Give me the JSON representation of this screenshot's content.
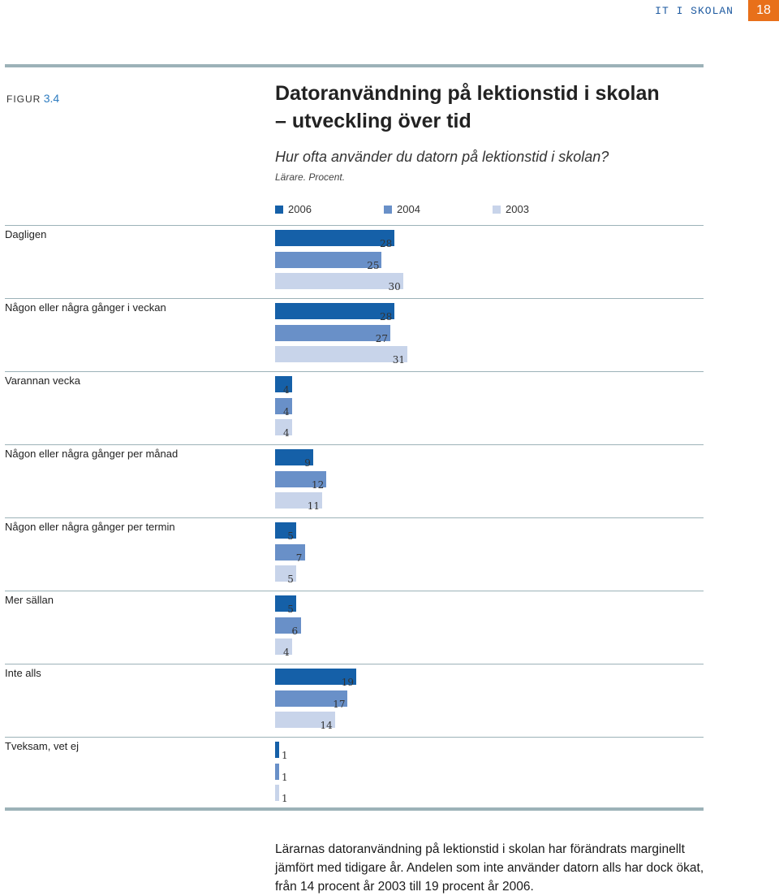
{
  "header": {
    "section": "IT I SKOLAN",
    "page_number": "18",
    "page_color": "#e8701a"
  },
  "figure": {
    "label_word": "FIGUR",
    "label_number": "3.4",
    "title_line1": "Datoranvändning på lektionstid i skolan",
    "title_line2": "– utveckling över tid",
    "subtitle": "Hur ofta använder du datorn på lektionstid i skolan?",
    "note": "Lärare. Procent."
  },
  "chart_data": {
    "type": "bar",
    "orientation": "horizontal",
    "categories": [
      "Dagligen",
      "Någon eller några gånger i veckan",
      "Varannan vecka",
      "Någon eller några gånger per månad",
      "Någon eller några gånger per termin",
      "Mer sällan",
      "Inte alls",
      "Tveksam, vet ej"
    ],
    "series": [
      {
        "name": "2006",
        "color": "#1560a8",
        "values": [
          28,
          28,
          4,
          9,
          5,
          5,
          19,
          1
        ]
      },
      {
        "name": "2004",
        "color": "#6990c8",
        "values": [
          25,
          27,
          4,
          12,
          7,
          6,
          17,
          1
        ]
      },
      {
        "name": "2003",
        "color": "#c8d4ea",
        "values": [
          30,
          31,
          4,
          11,
          5,
          4,
          14,
          1
        ]
      }
    ],
    "value_labels": "at bar end",
    "legend_position": "top",
    "grid": false
  },
  "footer": {
    "text": "Lärarnas datoranvändning på lektionstid i skolan har förändrats marginellt jämfört med tidigare år. Andelen som inte använder datorn alls har dock ökat, från 14 procent år 2003 till 19 procent år 2006."
  }
}
